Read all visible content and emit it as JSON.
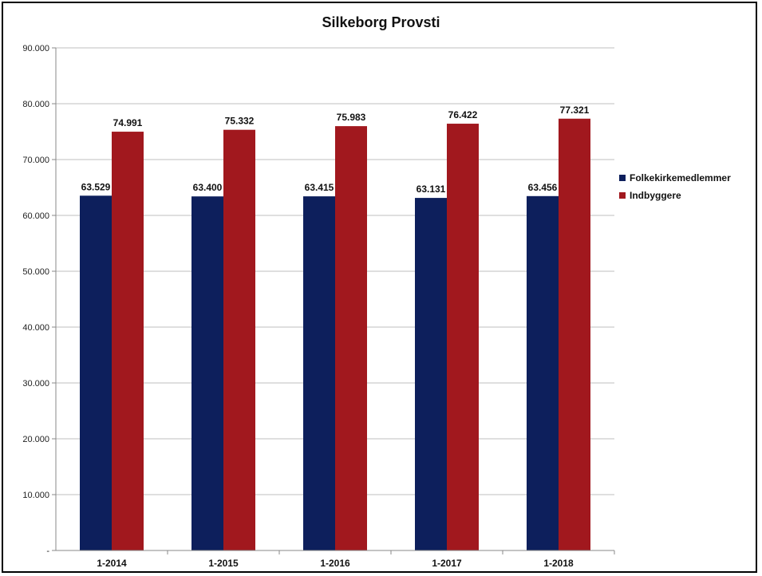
{
  "chart_data": {
    "type": "bar",
    "title": "Silkeborg Provsti",
    "categories": [
      "1-2014",
      "1-2015",
      "1-2016",
      "1-2017",
      "1-2018"
    ],
    "series": [
      {
        "name": "Folkekirkemedlemmer",
        "values": [
          63529,
          63400,
          63415,
          63131,
          63456
        ],
        "labels": [
          "63.529",
          "63.400",
          "63.415",
          "63.131",
          "63.456"
        ],
        "color": "#0d1f5c"
      },
      {
        "name": "Indbyggere",
        "values": [
          74991,
          75332,
          75983,
          76422,
          77321
        ],
        "labels": [
          "74.991",
          "75.332",
          "75.983",
          "76.422",
          "77.321"
        ],
        "color": "#a1181e"
      }
    ],
    "ylim": [
      0,
      90000
    ],
    "yticks": [
      "-",
      "10.000",
      "20.000",
      "30.000",
      "40.000",
      "50.000",
      "60.000",
      "70.000",
      "80.000",
      "90.000"
    ],
    "grid": true,
    "legend": "right"
  }
}
